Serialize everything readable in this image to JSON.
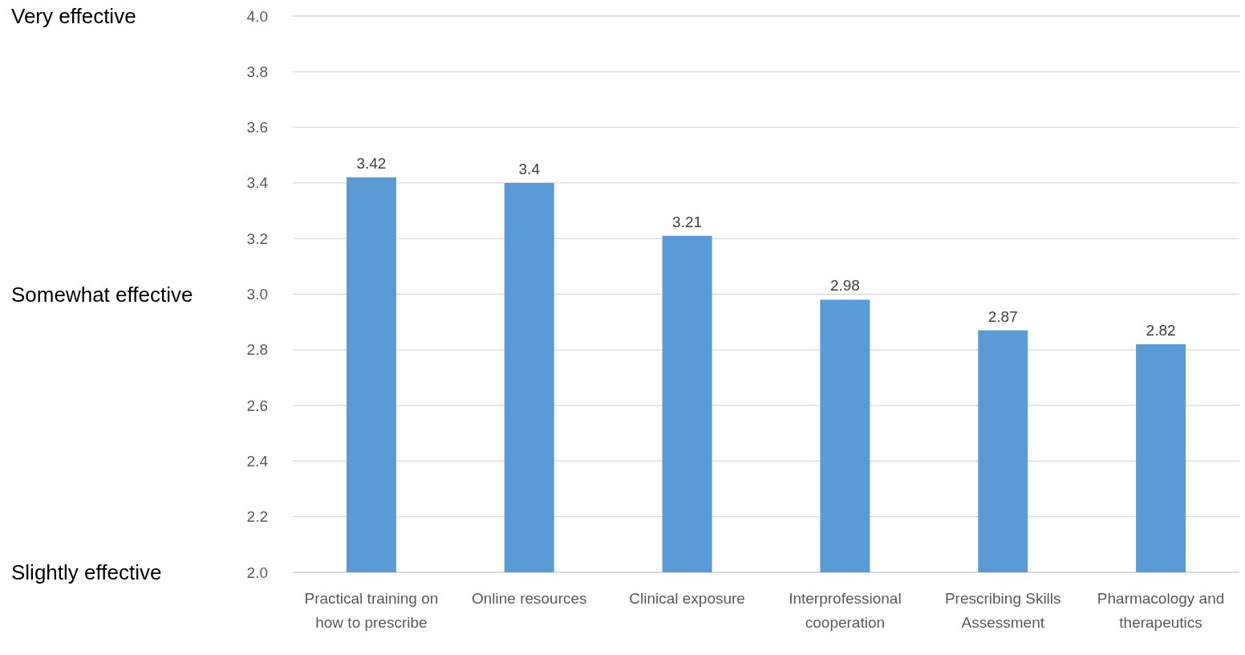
{
  "chart_data": {
    "type": "bar",
    "categories": [
      "Practical training on how to prescribe",
      "Online resources",
      "Clinical exposure",
      "Interprofessional cooperation",
      "Prescribing Skills Assessment",
      "Pharmacology and therapeutics"
    ],
    "values": [
      3.42,
      3.4,
      3.21,
      2.98,
      2.87,
      2.82
    ],
    "color": "#5b9bd5",
    "ylim": [
      2,
      4
    ],
    "yticks": [
      {
        "value": 2,
        "label": "2.0"
      },
      {
        "value": 2.2,
        "label": "2.2"
      },
      {
        "value": 2.4,
        "label": "2.4"
      },
      {
        "value": 2.6,
        "label": "2.6"
      },
      {
        "value": 2.8,
        "label": "2.8"
      },
      {
        "value": 3,
        "label": "3.0"
      },
      {
        "value": 3.2,
        "label": "3.2"
      },
      {
        "value": 3.4,
        "label": "3.4"
      },
      {
        "value": 3.6,
        "label": "3.6"
      },
      {
        "value": 3.8,
        "label": "3.8"
      },
      {
        "value": 4,
        "label": "4.0"
      }
    ],
    "annotations": [
      "Very effective",
      "Somewhat effective",
      "Slightly effective"
    ],
    "grid": "y",
    "data_labels": true
  }
}
